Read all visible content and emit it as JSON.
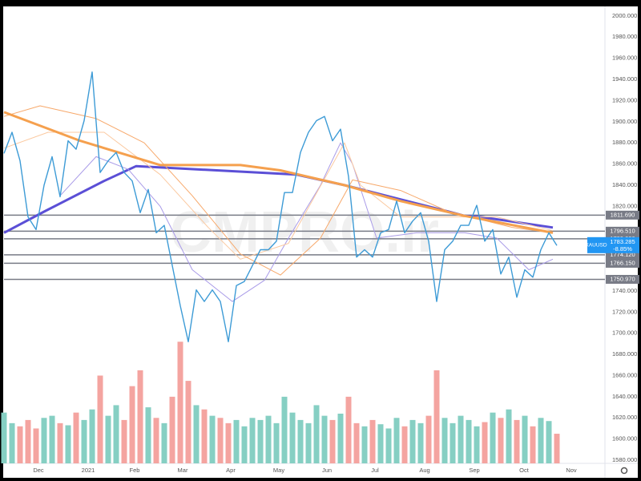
{
  "chart_data": {
    "type": "line",
    "watermark": "CMPRO.ir",
    "xlim": [
      0,
      75
    ],
    "ylim": [
      1577,
      2009
    ],
    "grid": false,
    "yticks": [
      {
        "value": 1580,
        "label": "1580.000"
      },
      {
        "value": 1600,
        "label": "1600.000"
      },
      {
        "value": 1620,
        "label": "1620.000"
      },
      {
        "value": 1640,
        "label": "1640.000"
      },
      {
        "value": 1660,
        "label": "1660.000"
      },
      {
        "value": 1680,
        "label": "1680.000"
      },
      {
        "value": 1700,
        "label": "1700.000"
      },
      {
        "value": 1720,
        "label": "1720.000"
      },
      {
        "value": 1740,
        "label": "1740.000"
      },
      {
        "value": 1820,
        "label": "1820.000"
      },
      {
        "value": 1840,
        "label": "1840.000"
      },
      {
        "value": 1860,
        "label": "1860.000"
      },
      {
        "value": 1880,
        "label": "1880.000"
      },
      {
        "value": 1900,
        "label": "1900.000"
      },
      {
        "value": 1920,
        "label": "1920.000"
      },
      {
        "value": 1940,
        "label": "1940.000"
      },
      {
        "value": 1960,
        "label": "1960.000"
      },
      {
        "value": 1980,
        "label": "1980.000"
      },
      {
        "value": 2000,
        "label": "2000.000"
      }
    ],
    "xticks": [
      {
        "value": 4.3,
        "label": "Dec"
      },
      {
        "value": 10.5,
        "label": "2021"
      },
      {
        "value": 16.3,
        "label": "Feb"
      },
      {
        "value": 22.3,
        "label": "Mar"
      },
      {
        "value": 28.3,
        "label": "Apr"
      },
      {
        "value": 34.3,
        "label": "May"
      },
      {
        "value": 40.3,
        "label": "Jun"
      },
      {
        "value": 46.3,
        "label": "Jul"
      },
      {
        "value": 52.5,
        "label": "Aug"
      },
      {
        "value": 58.7,
        "label": "Sep"
      },
      {
        "value": 64.9,
        "label": "Oct"
      },
      {
        "value": 70.8,
        "label": "Nov"
      }
    ],
    "series": [
      {
        "color": "#5b4fd6",
        "width": 3,
        "x": [
          0,
          5,
          12.5,
          16.5,
          36.5,
          42.5,
          55.5,
          57.5,
          59.5,
          68.5
        ],
        "values": [
          1795,
          1815,
          1844,
          1858,
          1850,
          1840,
          1815,
          1811,
          1810,
          1800
        ]
      },
      {
        "color": "#a99be8",
        "width": 1,
        "x": [
          7,
          11.5,
          15.5,
          19.5,
          23.5,
          28.5,
          32.5,
          35.5,
          39.5,
          42,
          43.5,
          46.5,
          51.5,
          57.5,
          61.5,
          65.5,
          68.5
        ],
        "values": [
          1830,
          1867,
          1855,
          1820,
          1760,
          1730,
          1750,
          1790,
          1840,
          1880,
          1860,
          1790,
          1795,
          1795,
          1790,
          1760,
          1770
        ]
      },
      {
        "color": "#fbc9a0",
        "width": 1,
        "x": [
          0,
          5.5,
          12.5,
          19.5,
          25.5,
          29.5,
          35.5,
          42.5,
          44.5,
          49.5,
          55.5,
          61.5,
          68.5
        ],
        "values": [
          1875,
          1890,
          1890,
          1850,
          1800,
          1770,
          1785,
          1880,
          1840,
          1810,
          1810,
          1810,
          1797
        ]
      },
      {
        "color": "#f7a86a",
        "width": 1,
        "x": [
          0,
          4.5,
          11.5,
          17.5,
          23.5,
          29.5,
          34.5,
          39.5,
          43.5,
          49.5,
          55.5,
          63.5,
          68.5
        ],
        "values": [
          1905,
          1915,
          1903,
          1880,
          1830,
          1775,
          1755,
          1790,
          1845,
          1835,
          1815,
          1800,
          1795
        ]
      },
      {
        "color": "#f5a04e",
        "width": 3,
        "x": [
          0,
          9.5,
          19.5,
          29.5,
          34.5,
          42.5,
          49.5,
          57.5,
          68.5
        ],
        "values": [
          1909,
          1882,
          1859,
          1859,
          1854,
          1840,
          1825,
          1811,
          1795
        ]
      },
      {
        "color": "#3d9bd6",
        "width": 1.4,
        "values": [
          1870,
          1890,
          1863,
          1810,
          1798,
          1840,
          1867,
          1829,
          1882,
          1874,
          1901,
          1947,
          1852,
          1863,
          1871,
          1852,
          1844,
          1814,
          1836,
          1795,
          1802,
          1764,
          1726,
          1692,
          1741,
          1730,
          1741,
          1730,
          1692,
          1745,
          1749,
          1764,
          1779,
          1779,
          1787,
          1833,
          1833,
          1871,
          1890,
          1901,
          1905,
          1882,
          1893,
          1848,
          1772,
          1779,
          1772,
          1795,
          1798,
          1825,
          1795,
          1806,
          1814,
          1787,
          1730,
          1779,
          1787,
          1802,
          1802,
          1821,
          1787,
          1798,
          1756,
          1772,
          1734,
          1760,
          1753,
          1779,
          1795,
          1783
        ]
      }
    ],
    "levels": [
      {
        "value": 1811.69,
        "label": "1811.690"
      },
      {
        "value": 1796.51,
        "label": "1796.510"
      },
      {
        "value": 1789.3,
        "label": "1789.300"
      },
      {
        "value": 1774.12,
        "label": "1774.120"
      },
      {
        "value": 1766.15,
        "label": "1766.150"
      },
      {
        "value": 1750.97,
        "label": "1750.970"
      }
    ],
    "current": {
      "symbol": "XAUUSD",
      "price": {
        "value": 1783.285,
        "label": "1783.285"
      },
      "change": {
        "value": -8.85,
        "label": "-8.85%"
      }
    },
    "volume": {
      "up_color": "#86cfc3",
      "down_color": "#f4a4a0",
      "values": [
        1625,
        1615,
        1612,
        1618,
        1610,
        1620,
        1622,
        1615,
        1613,
        1625,
        1618,
        1628,
        1660,
        1622,
        1632,
        1618,
        1650,
        1665,
        1630,
        1620,
        1615,
        1640,
        1692,
        1655,
        1632,
        1628,
        1622,
        1620,
        1615,
        1618,
        1612,
        1620,
        1618,
        1622,
        1615,
        1640,
        1625,
        1618,
        1615,
        1632,
        1622,
        1618,
        1624,
        1640,
        1615,
        1612,
        1618,
        1614,
        1610,
        1620,
        1612,
        1618,
        1615,
        1622,
        1665,
        1620,
        1615,
        1622,
        1618,
        1612,
        1616,
        1625,
        1620,
        1628,
        1618,
        1622,
        1612,
        1620,
        1617,
        1605
      ]
    }
  }
}
